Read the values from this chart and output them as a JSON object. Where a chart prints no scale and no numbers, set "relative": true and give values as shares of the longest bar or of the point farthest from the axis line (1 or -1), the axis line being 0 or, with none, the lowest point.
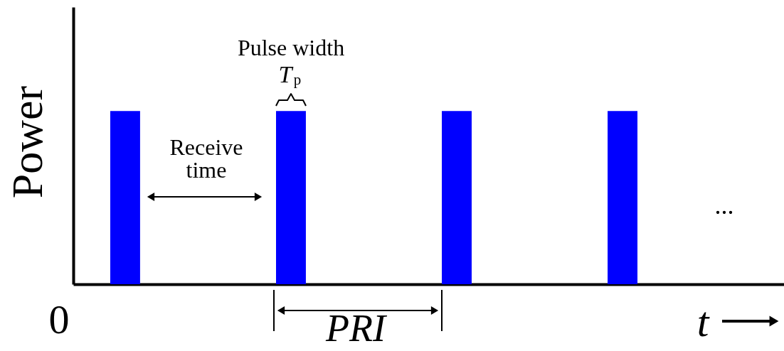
{
  "chart_data": {
    "type": "bar",
    "relative": true,
    "categories": [
      null,
      null,
      null,
      null
    ],
    "values": [
      1,
      1,
      1,
      1
    ],
    "color": "#0000ff",
    "xlabel": "t",
    "ylabel": "Power",
    "grid": false,
    "annotations": [
      "Pulse width",
      "T$_{p}$",
      "Receive time",
      "0",
      "PRI",
      "..."
    ]
  }
}
